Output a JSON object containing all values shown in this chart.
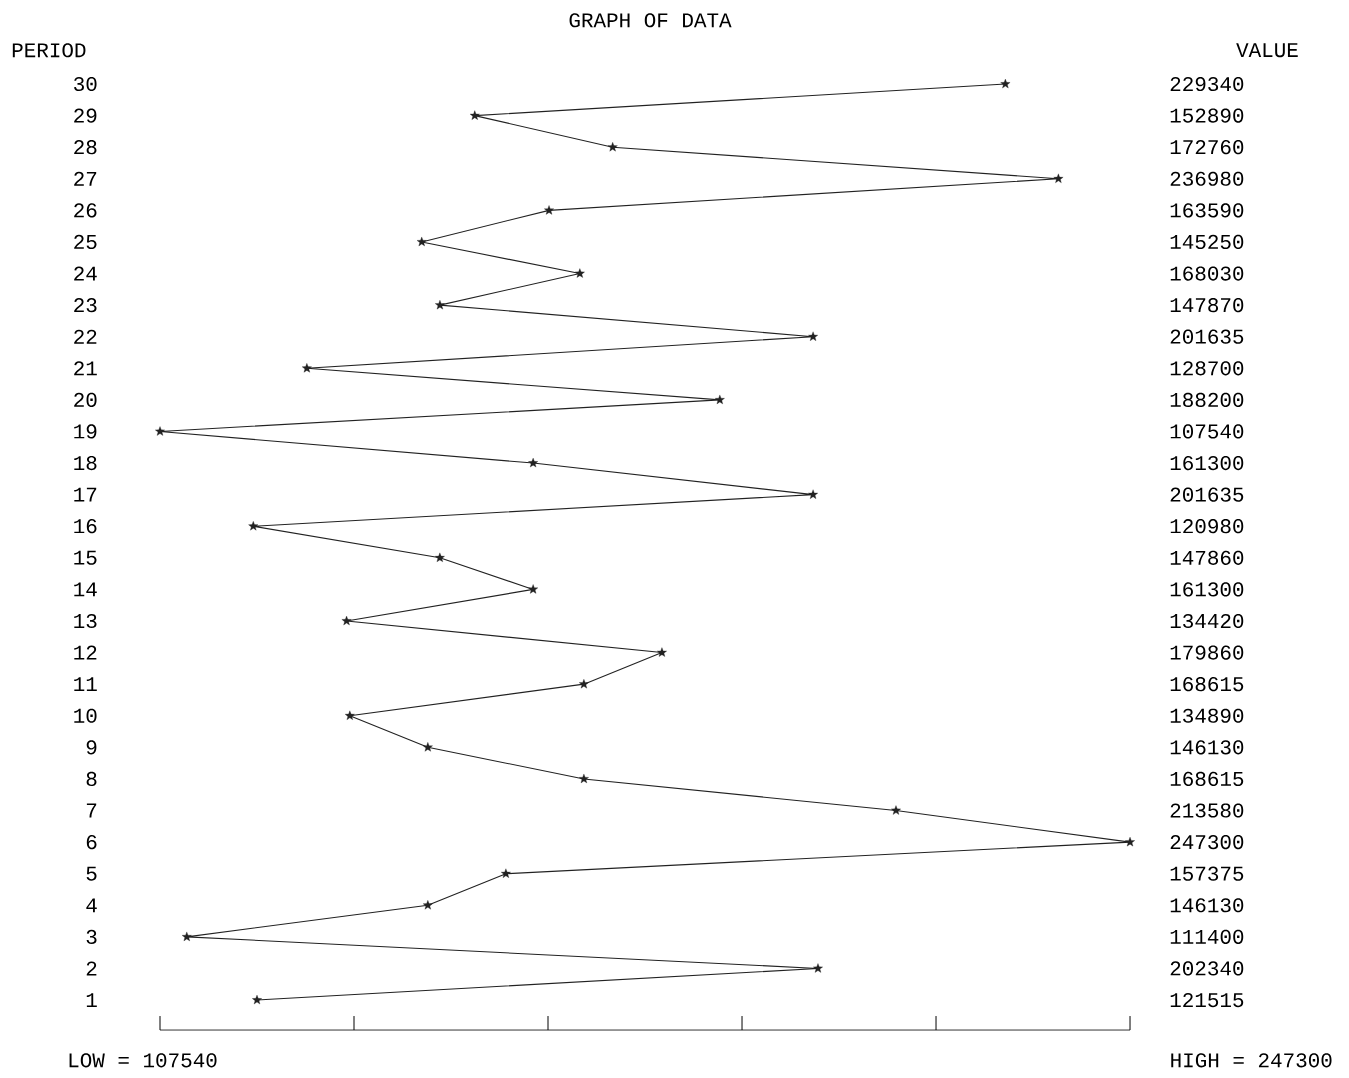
{
  "chart_data": {
    "type": "line",
    "orientation": "horizontal",
    "title": "GRAPH OF DATA",
    "ylabel": "PERIOD",
    "categories": [
      "30",
      "29",
      "28",
      "27",
      "26",
      "25",
      "24",
      "23",
      "22",
      "21",
      "20",
      "19",
      "18",
      "17",
      "16",
      "15",
      "14",
      "13",
      "12",
      "11",
      "10",
      "9",
      "8",
      "7",
      "6",
      "5",
      "4",
      "3",
      "2",
      "1"
    ],
    "values": [
      229340,
      152890,
      172760,
      236980,
      163590,
      145250,
      168030,
      147870,
      201635,
      128700,
      188200,
      107540,
      161300,
      201635,
      120980,
      147860,
      161300,
      134420,
      179860,
      168615,
      134890,
      146130,
      168615,
      213580,
      247300,
      157375,
      146130,
      111400,
      202340,
      121515
    ],
    "color": "#222222",
    "marker": "star",
    "line_style": "solid",
    "data_labels": true,
    "tick_labels": "y",
    "xticks": [
      {
        "value": 107540,
        "label": null
      },
      {
        "value": 135492,
        "label": null
      },
      {
        "value": 163444,
        "label": null
      },
      {
        "value": 191396,
        "label": null
      },
      {
        "value": 219348,
        "label": null
      },
      {
        "value": 247300,
        "label": null
      }
    ],
    "annotations": [
      "VALUE",
      "LOW = 107540",
      "HIGH = 247300"
    ]
  }
}
